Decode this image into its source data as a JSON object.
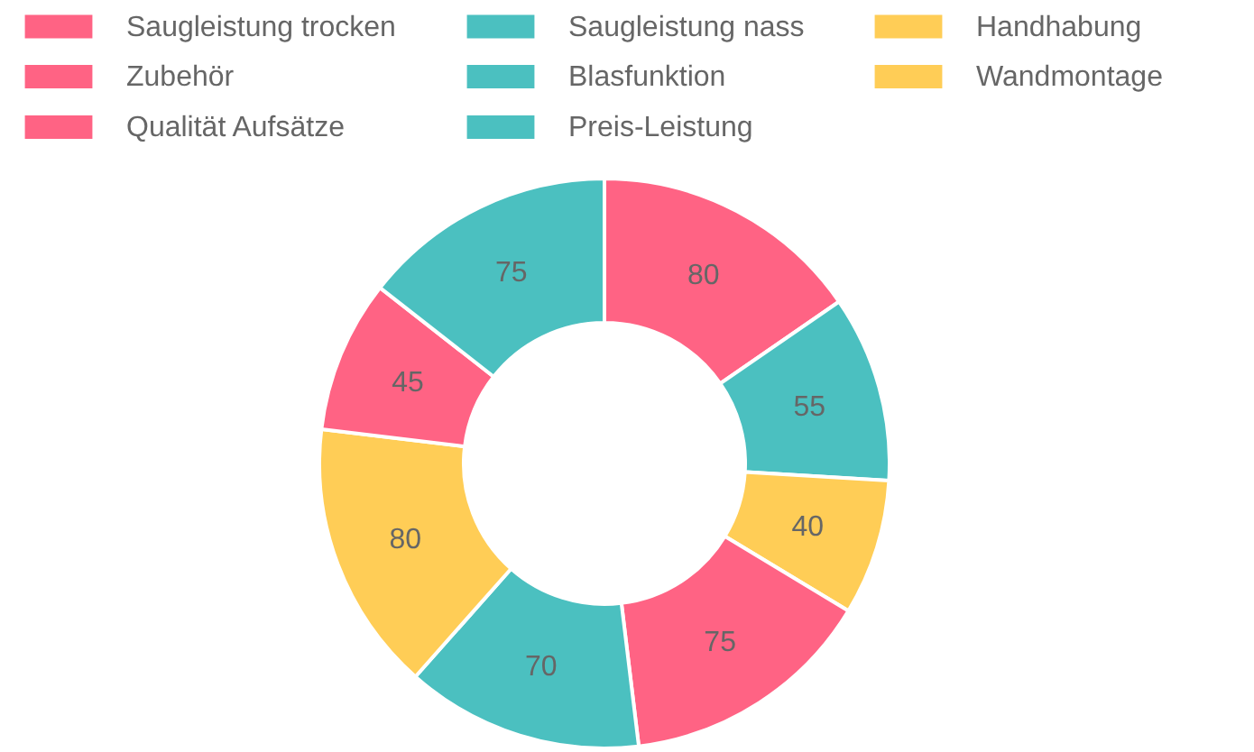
{
  "chart_data": {
    "type": "donut",
    "categories": [
      "Saugleistung trocken",
      "Saugleistung nass",
      "Handhabung",
      "Zubehör",
      "Blasfunktion",
      "Wandmontage",
      "Qualität Aufsätze",
      "Preis-Leistung"
    ],
    "values": [
      80,
      55,
      40,
      75,
      70,
      80,
      45,
      75
    ],
    "colors": [
      "#ff6384",
      "#4bc0c0",
      "#ffcd56",
      "#ff6384",
      "#4bc0c0",
      "#ffcd56",
      "#ff6384",
      "#4bc0c0"
    ],
    "data_labels": true,
    "legend": "top"
  }
}
